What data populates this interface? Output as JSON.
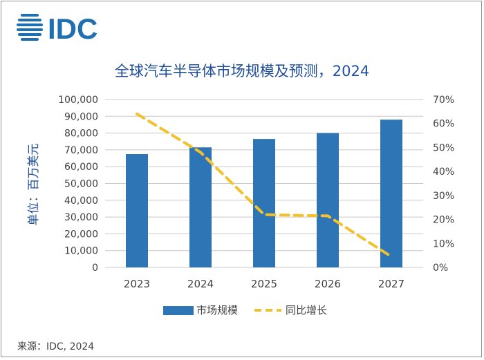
{
  "brand": {
    "logo_text": "IDC",
    "color": "#1f6fb3"
  },
  "source": "来源：IDC, 2024",
  "chart_data": {
    "type": "bar",
    "title": "全球汽车半导体市场规模及预测，2024",
    "ylabel": "单位：百万美元",
    "categories": [
      "2023",
      "2024",
      "2025",
      "2026",
      "2027"
    ],
    "series": [
      {
        "name": "市场规模",
        "type": "bar",
        "axis": "left",
        "values": [
          67500,
          71500,
          76500,
          80000,
          88000
        ],
        "color": "#2e75b6"
      },
      {
        "name": "同比增长",
        "type": "line",
        "axis": "right",
        "values": [
          0.64,
          0.48,
          0.22,
          0.215,
          0.045
        ],
        "color": "#f2c12e"
      }
    ],
    "ylim": [
      0,
      100000
    ],
    "y_ticks": [
      0,
      10000,
      20000,
      30000,
      40000,
      50000,
      60000,
      70000,
      80000,
      90000,
      100000
    ],
    "y_tick_labels": [
      "0",
      "10,000",
      "20,000",
      "30,000",
      "40,000",
      "50,000",
      "60,000",
      "70,000",
      "80,000",
      "90,000",
      "100,000"
    ],
    "y2lim": [
      0,
      0.7
    ],
    "y2_ticks": [
      0,
      0.1,
      0.2,
      0.3,
      0.4,
      0.5,
      0.6,
      0.7
    ],
    "y2_tick_labels": [
      "0%",
      "10%",
      "20%",
      "30%",
      "40%",
      "50%",
      "60%",
      "70%"
    ],
    "grid": true,
    "legend_position": "bottom",
    "title_color": "#1f4e9a"
  }
}
